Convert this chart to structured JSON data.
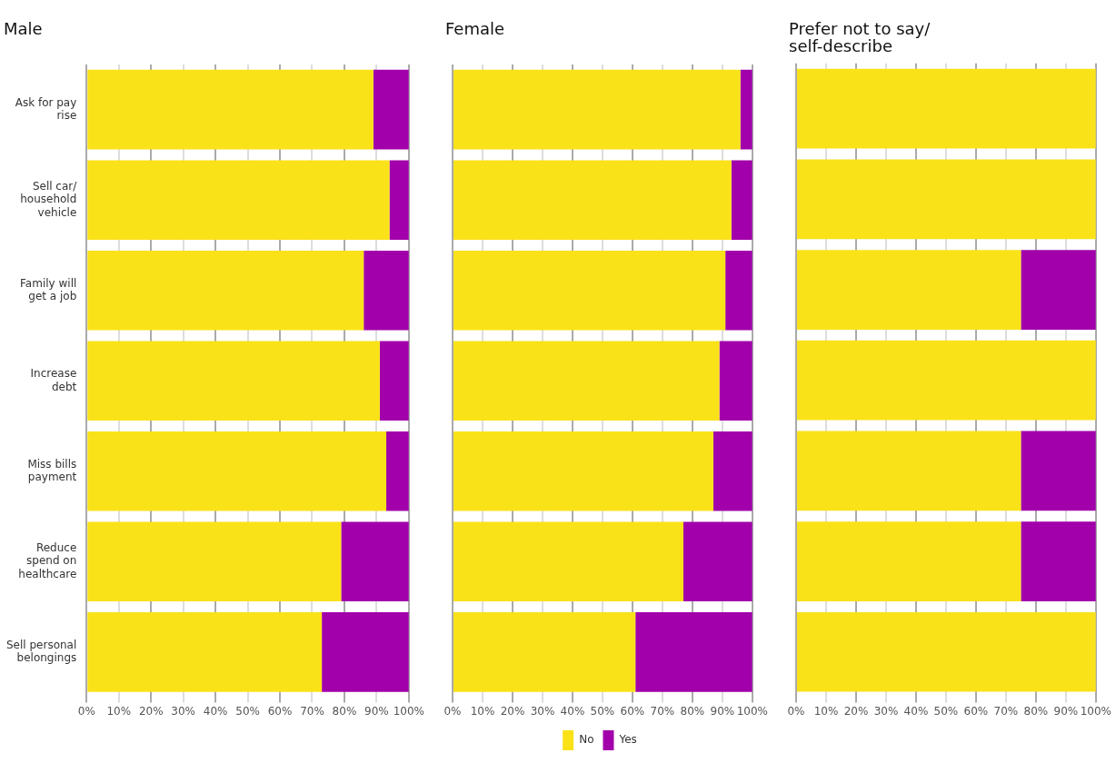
{
  "chart_data": [
    {
      "type": "bar",
      "orientation": "horizontal",
      "stacked": true,
      "title": "Male",
      "categories": [
        "Ask for pay rise",
        "Sell car/ household vehicle",
        "Family will get a job",
        "Increase debt",
        "Miss bills payment",
        "Reduce spend on healthcare",
        "Sell personal belongings"
      ],
      "series": [
        {
          "color": "#fae219",
          "values": [
            89,
            94,
            86,
            91,
            93,
            79,
            73
          ]
        },
        {
          "color": "#a100aa",
          "values": [
            11,
            6,
            14,
            9,
            7,
            21,
            27
          ]
        }
      ],
      "xlim": [
        0,
        100
      ],
      "xticks": [
        {
          "value": 0,
          "label": "0%"
        },
        {
          "value": 10,
          "label": "10%"
        },
        {
          "value": 20,
          "label": "20%"
        },
        {
          "value": 30,
          "label": "30%"
        },
        {
          "value": 40,
          "label": "40%"
        },
        {
          "value": 50,
          "label": "50%"
        },
        {
          "value": 60,
          "label": "60%"
        },
        {
          "value": 70,
          "label": "70%"
        },
        {
          "value": 80,
          "label": "80%"
        },
        {
          "value": 90,
          "label": "90%"
        },
        {
          "value": 100,
          "label": "100%"
        }
      ],
      "grid": "x",
      "legend": false
    },
    {
      "type": "bar",
      "orientation": "horizontal",
      "stacked": true,
      "title": "Female",
      "categories": [
        null,
        null,
        null,
        null,
        null,
        null,
        null
      ],
      "series": [
        {
          "name": "No",
          "color": "#fae219",
          "values": [
            96,
            93,
            91,
            89,
            87,
            77,
            61
          ]
        },
        {
          "name": "Yes",
          "color": "#a100aa",
          "values": [
            4,
            7,
            9,
            11,
            13,
            23,
            39
          ]
        }
      ],
      "xlim": [
        0,
        100
      ],
      "xticks": [
        {
          "value": 0,
          "label": "0%"
        },
        {
          "value": 10,
          "label": "10%"
        },
        {
          "value": 20,
          "label": "20%"
        },
        {
          "value": 30,
          "label": "30%"
        },
        {
          "value": 40,
          "label": "40%"
        },
        {
          "value": 50,
          "label": "50%"
        },
        {
          "value": 60,
          "label": "60%"
        },
        {
          "value": 70,
          "label": "70%"
        },
        {
          "value": 80,
          "label": "80%"
        },
        {
          "value": 90,
          "label": "90%"
        },
        {
          "value": 100,
          "label": "100%"
        }
      ],
      "grid": "x",
      "legend": "bottom",
      "tick_labels": "x"
    },
    {
      "type": "bar",
      "orientation": "horizontal",
      "stacked": true,
      "title": "Prefer not to say/ self-describe",
      "categories": [
        null,
        null,
        null,
        null,
        null,
        null,
        null
      ],
      "series": [
        {
          "color": "#fae219",
          "values": [
            100,
            100,
            75,
            100,
            75,
            75,
            100
          ]
        },
        {
          "color": "#a100aa",
          "values": [
            0,
            0,
            25,
            0,
            25,
            25,
            0
          ]
        }
      ],
      "xlim": [
        0,
        100
      ],
      "xticks": [
        {
          "value": 0,
          "label": "0%"
        },
        {
          "value": 10,
          "label": "10%"
        },
        {
          "value": 20,
          "label": "20%"
        },
        {
          "value": 30,
          "label": "30%"
        },
        {
          "value": 40,
          "label": "40%"
        },
        {
          "value": 50,
          "label": "50%"
        },
        {
          "value": 60,
          "label": "60%"
        },
        {
          "value": 70,
          "label": "70%"
        },
        {
          "value": 80,
          "label": "80%"
        },
        {
          "value": 90,
          "label": "90%"
        },
        {
          "value": 100,
          "label": "100%"
        }
      ],
      "grid": "x",
      "legend": false,
      "tick_labels": "x"
    }
  ]
}
